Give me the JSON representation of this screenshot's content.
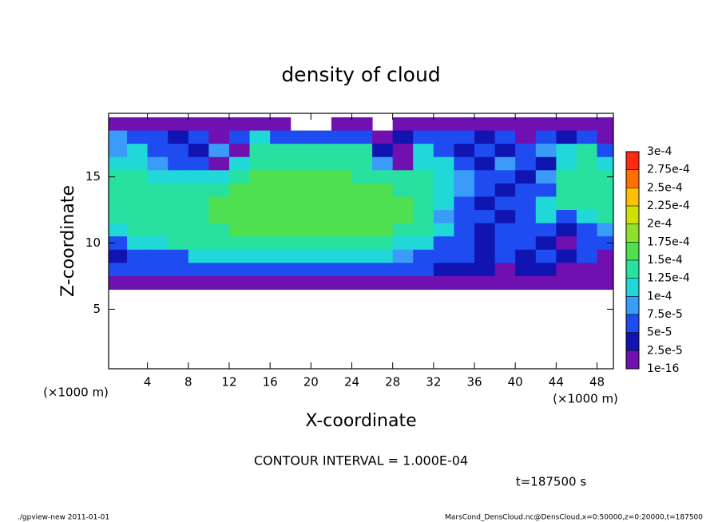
{
  "chart_data": {
    "type": "heatmap",
    "title": "density of cloud",
    "x_label": "X-coordinate",
    "y_label": "Z-coordinate",
    "x_unit": "(×1000 m)",
    "xlim": [
      0.2,
      49.6
    ],
    "ylim": [
      0.5,
      19.8
    ],
    "xticks": [
      4,
      8,
      12,
      16,
      20,
      24,
      28,
      32,
      36,
      40,
      44,
      48
    ],
    "yticks": [
      5,
      10,
      15
    ],
    "x": [
      1,
      3,
      5,
      7,
      9,
      11,
      13,
      15,
      17,
      19,
      21,
      23,
      25,
      27,
      29,
      31,
      33,
      35,
      37,
      39,
      41,
      43,
      45,
      47,
      49
    ],
    "z": [
      19,
      18,
      17,
      16,
      15,
      14,
      13,
      12,
      11,
      10,
      9,
      8,
      7
    ],
    "values": [
      [
        1e-05,
        1e-05,
        1e-05,
        1e-05,
        1e-05,
        1e-05,
        1e-05,
        1e-05,
        1e-05,
        null,
        null,
        1e-05,
        1e-05,
        null,
        1e-05,
        1e-05,
        1e-05,
        1e-05,
        1e-05,
        1e-05,
        1e-05,
        1e-05,
        1e-05,
        1e-05,
        1e-05
      ],
      [
        8.5e-05,
        6e-05,
        6e-05,
        3.5e-05,
        6e-05,
        1e-05,
        6e-05,
        0.00011,
        6e-05,
        6e-05,
        6e-05,
        6e-05,
        6e-05,
        1e-05,
        3.5e-05,
        6e-05,
        6e-05,
        6e-05,
        3.5e-05,
        6e-05,
        1e-05,
        6e-05,
        3.5e-05,
        6e-05,
        1e-05
      ],
      [
        8.5e-05,
        0.00011,
        6e-05,
        6e-05,
        3.5e-05,
        8.5e-05,
        1e-05,
        0.00014,
        0.00014,
        0.00014,
        0.00014,
        0.00014,
        0.00014,
        3.5e-05,
        1e-05,
        0.00011,
        6e-05,
        3.5e-05,
        6e-05,
        3.5e-05,
        6e-05,
        8.5e-05,
        0.00011,
        0.00014,
        6e-05
      ],
      [
        0.00011,
        0.00011,
        8.5e-05,
        6e-05,
        6e-05,
        1e-05,
        0.00011,
        0.00014,
        0.00014,
        0.00014,
        0.00014,
        0.00014,
        0.00014,
        8.5e-05,
        1e-05,
        0.00011,
        0.00011,
        6e-05,
        3.5e-05,
        8.5e-05,
        6e-05,
        3.5e-05,
        0.00011,
        0.00014,
        0.00011
      ],
      [
        0.00014,
        0.00014,
        0.00011,
        0.00011,
        0.00011,
        0.00011,
        0.00014,
        0.00016,
        0.00016,
        0.00016,
        0.00016,
        0.00016,
        0.00014,
        0.00014,
        0.00014,
        0.00014,
        0.00011,
        8.5e-05,
        6e-05,
        6e-05,
        3.5e-05,
        8.5e-05,
        0.00014,
        0.00014,
        0.00014
      ],
      [
        0.00014,
        0.00014,
        0.00014,
        0.00014,
        0.00014,
        0.00014,
        0.00016,
        0.00016,
        0.00016,
        0.00016,
        0.00016,
        0.00016,
        0.00016,
        0.00016,
        0.00014,
        0.00014,
        0.00011,
        8.5e-05,
        6e-05,
        3.5e-05,
        6e-05,
        6e-05,
        0.00014,
        0.00014,
        0.00014
      ],
      [
        0.00014,
        0.00014,
        0.00014,
        0.00014,
        0.00014,
        0.00016,
        0.00016,
        0.00016,
        0.00016,
        0.00016,
        0.00016,
        0.00016,
        0.00016,
        0.00016,
        0.00016,
        0.00014,
        0.00011,
        6e-05,
        3.5e-05,
        6e-05,
        6e-05,
        0.00011,
        0.00014,
        0.00014,
        0.00014
      ],
      [
        0.00014,
        0.00014,
        0.00014,
        0.00014,
        0.00014,
        0.00016,
        0.00016,
        0.00016,
        0.00016,
        0.00016,
        0.00016,
        0.00016,
        0.00016,
        0.00016,
        0.00016,
        0.00014,
        8.5e-05,
        6e-05,
        6e-05,
        3.5e-05,
        6e-05,
        0.00011,
        6e-05,
        0.00011,
        0.00014
      ],
      [
        0.00011,
        0.00014,
        0.00014,
        0.00014,
        0.00014,
        0.00014,
        0.00016,
        0.00016,
        0.00016,
        0.00016,
        0.00016,
        0.00016,
        0.00016,
        0.00016,
        0.00014,
        0.00014,
        0.00011,
        6e-05,
        3.5e-05,
        6e-05,
        6e-05,
        6e-05,
        3.5e-05,
        6e-05,
        8.5e-05
      ],
      [
        6e-05,
        0.00011,
        0.00011,
        0.00014,
        0.00014,
        0.00014,
        0.00014,
        0.00014,
        0.00014,
        0.00014,
        0.00014,
        0.00014,
        0.00014,
        0.00014,
        0.00011,
        0.00011,
        6e-05,
        6e-05,
        3.5e-05,
        6e-05,
        6e-05,
        3.5e-05,
        1e-05,
        6e-05,
        6e-05
      ],
      [
        3.5e-05,
        6e-05,
        6e-05,
        6e-05,
        0.00011,
        0.00011,
        0.00011,
        0.00011,
        0.00011,
        0.00011,
        0.00011,
        0.00011,
        0.00011,
        0.00011,
        8.5e-05,
        6e-05,
        6e-05,
        6e-05,
        3.5e-05,
        6e-05,
        3.5e-05,
        6e-05,
        3.5e-05,
        6e-05,
        1e-05
      ],
      [
        6e-05,
        6e-05,
        6e-05,
        6e-05,
        6e-05,
        6e-05,
        6e-05,
        6e-05,
        6e-05,
        6e-05,
        6e-05,
        6e-05,
        6e-05,
        6e-05,
        6e-05,
        6e-05,
        3.5e-05,
        3.5e-05,
        3.5e-05,
        1e-05,
        3.5e-05,
        3.5e-05,
        1e-05,
        1e-05,
        1e-05
      ],
      [
        1e-05,
        1e-05,
        1e-05,
        1e-05,
        1e-05,
        1e-05,
        1e-05,
        1e-05,
        1e-05,
        1e-05,
        1e-05,
        1e-05,
        1e-05,
        1e-05,
        1e-05,
        1e-05,
        1e-05,
        1e-05,
        1e-05,
        1e-05,
        1e-05,
        1e-05,
        1e-05,
        1e-05,
        1e-05
      ]
    ],
    "colorbar": {
      "levels": [
        {
          "value": 1e-16,
          "label": "1e-16"
        },
        {
          "value": 2.5e-05,
          "label": "2.5e-5"
        },
        {
          "value": 5e-05,
          "label": "5e-5"
        },
        {
          "value": 7.5e-05,
          "label": "7.5e-5"
        },
        {
          "value": 0.0001,
          "label": "1e-4"
        },
        {
          "value": 0.000125,
          "label": "1.25e-4"
        },
        {
          "value": 0.00015,
          "label": "1.5e-4"
        },
        {
          "value": 0.000175,
          "label": "1.75e-4"
        },
        {
          "value": 0.0002,
          "label": "2e-4"
        },
        {
          "value": 0.000225,
          "label": "2.25e-4"
        },
        {
          "value": 0.00025,
          "label": "2.5e-4"
        },
        {
          "value": 0.000275,
          "label": "2.75e-4"
        },
        {
          "value": 0.0003,
          "label": "3e-4"
        }
      ],
      "colors": [
        "#7010b0",
        "#1014b0",
        "#1e4cf0",
        "#3a9cf8",
        "#20d8d8",
        "#28e0a0",
        "#4ee050",
        "#90e030",
        "#d0e000",
        "#ffc000",
        "#ff7000",
        "#ff2a10"
      ]
    },
    "contour_note": "CONTOUR INTERVAL = 1.000E-04",
    "time_note": "t=187500 s",
    "footer_left": "./gpview-new  2011-01-01",
    "footer_right": "MarsCond_DensCloud.nc@DensCloud,x=0:50000,z=0:20000,t=187500"
  }
}
